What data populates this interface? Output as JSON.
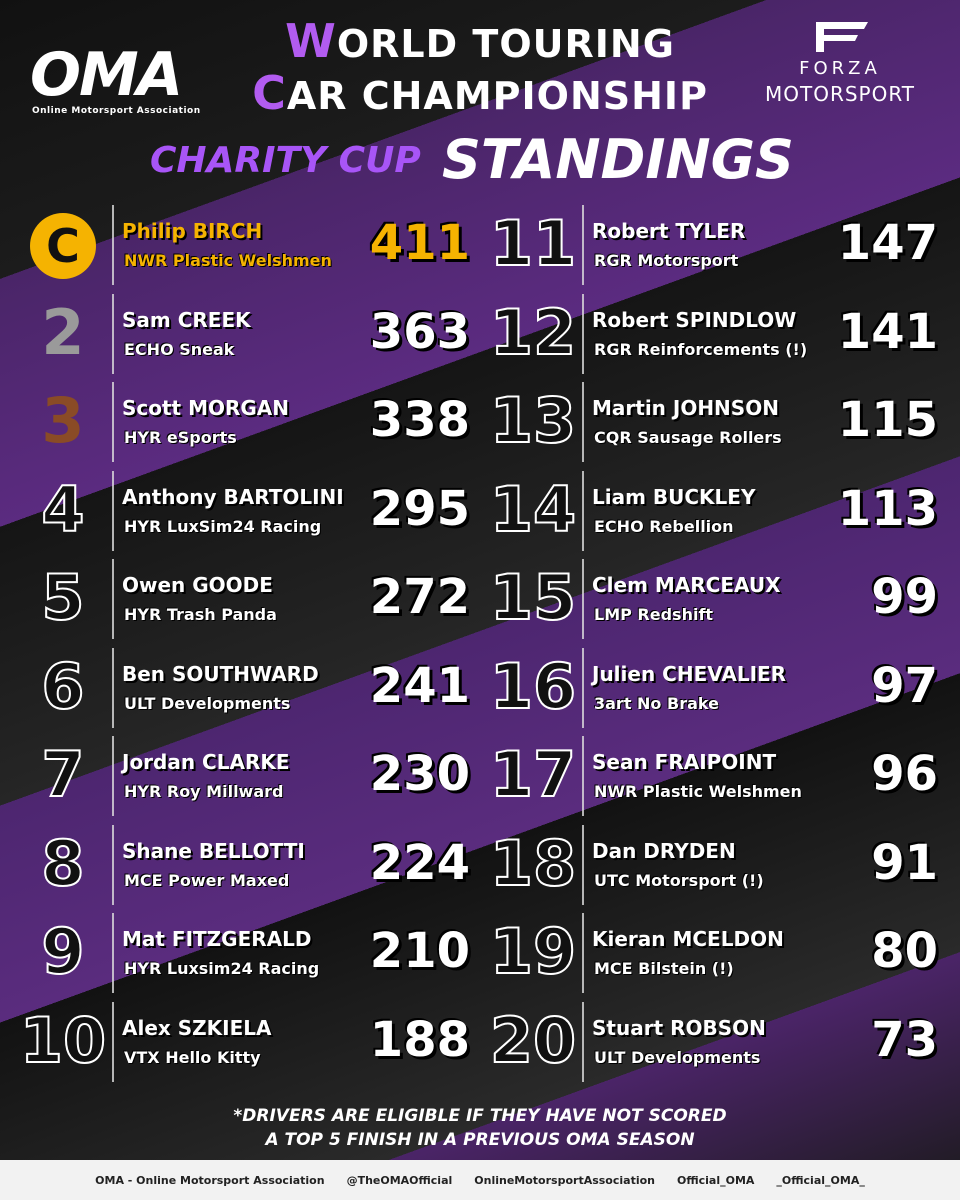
{
  "header": {
    "oma_logo": "OMA",
    "oma_subtitle": "Online Motorsport Association",
    "title_lines": [
      "WORLD TOURING",
      "CAR CHAMPIONSHIP"
    ],
    "forza_logo": [
      "FORZA",
      "MOTORSPORT"
    ]
  },
  "subtitle": {
    "cup": "CHARITY CUP",
    "standings": "STANDINGS"
  },
  "standings": [
    {
      "position": "C",
      "driver": "Philip BIRCH",
      "team": "NWR Plastic Welshmen",
      "points": 411
    },
    {
      "position": 2,
      "driver": "Sam CREEK",
      "team": "ECHO Sneak",
      "points": 363
    },
    {
      "position": 3,
      "driver": "Scott MORGAN",
      "team": "HYR eSports",
      "points": 338
    },
    {
      "position": 4,
      "driver": "Anthony BARTOLINI",
      "team": "HYR LuxSim24 Racing",
      "points": 295
    },
    {
      "position": 5,
      "driver": "Owen GOODE",
      "team": "HYR Trash Panda",
      "points": 272
    },
    {
      "position": 6,
      "driver": "Ben SOUTHWARD",
      "team": "ULT Developments",
      "points": 241
    },
    {
      "position": 7,
      "driver": "Jordan CLARKE",
      "team": "HYR Roy Millward",
      "points": 230
    },
    {
      "position": 8,
      "driver": "Shane BELLOTTI",
      "team": "MCE Power Maxed",
      "points": 224
    },
    {
      "position": 9,
      "driver": "Mat FITZGERALD",
      "team": "HYR Luxsim24 Racing",
      "points": 210
    },
    {
      "position": 10,
      "driver": "Alex SZKIELA",
      "team": "VTX Hello Kitty",
      "points": 188
    },
    {
      "position": 11,
      "driver": "Robert TYLER",
      "team": "RGR Motorsport",
      "points": 147
    },
    {
      "position": 12,
      "driver": "Robert SPINDLOW",
      "team": "RGR Reinforcements (!)",
      "points": 141
    },
    {
      "position": 13,
      "driver": "Martin JOHNSON",
      "team": "CQR Sausage Rollers",
      "points": 115
    },
    {
      "position": 14,
      "driver": "Liam BUCKLEY",
      "team": "ECHO Rebellion",
      "points": 113
    },
    {
      "position": 15,
      "driver": "Clem MARCEAUX",
      "team": "LMP Redshift",
      "points": 99
    },
    {
      "position": 16,
      "driver": "Julien CHEVALIER",
      "team": "3art No Brake",
      "points": 97
    },
    {
      "position": 17,
      "driver": "Sean FRAIPOINT",
      "team": "NWR Plastic Welshmen",
      "points": 96
    },
    {
      "position": 18,
      "driver": "Dan DRYDEN",
      "team": "UTC Motorsport (!)",
      "points": 91
    },
    {
      "position": 19,
      "driver": "Kieran MCELDON",
      "team": "MCE Bilstein (!)",
      "points": 80
    },
    {
      "position": 20,
      "driver": "Stuart ROBSON",
      "team": "ULT Developments",
      "points": 73
    }
  ],
  "footnote": [
    "*DRIVERS ARE ELIGIBLE IF THEY HAVE NOT SCORED",
    "A TOP 5 FINISH IN A PREVIOUS OMA SEASON"
  ],
  "footer": [
    "OMA - Online Motorsport Association",
    "@TheOMAOfficial",
    "OnlineMotorsportAssociation",
    "Official_OMA",
    "_Official_OMA_"
  ]
}
